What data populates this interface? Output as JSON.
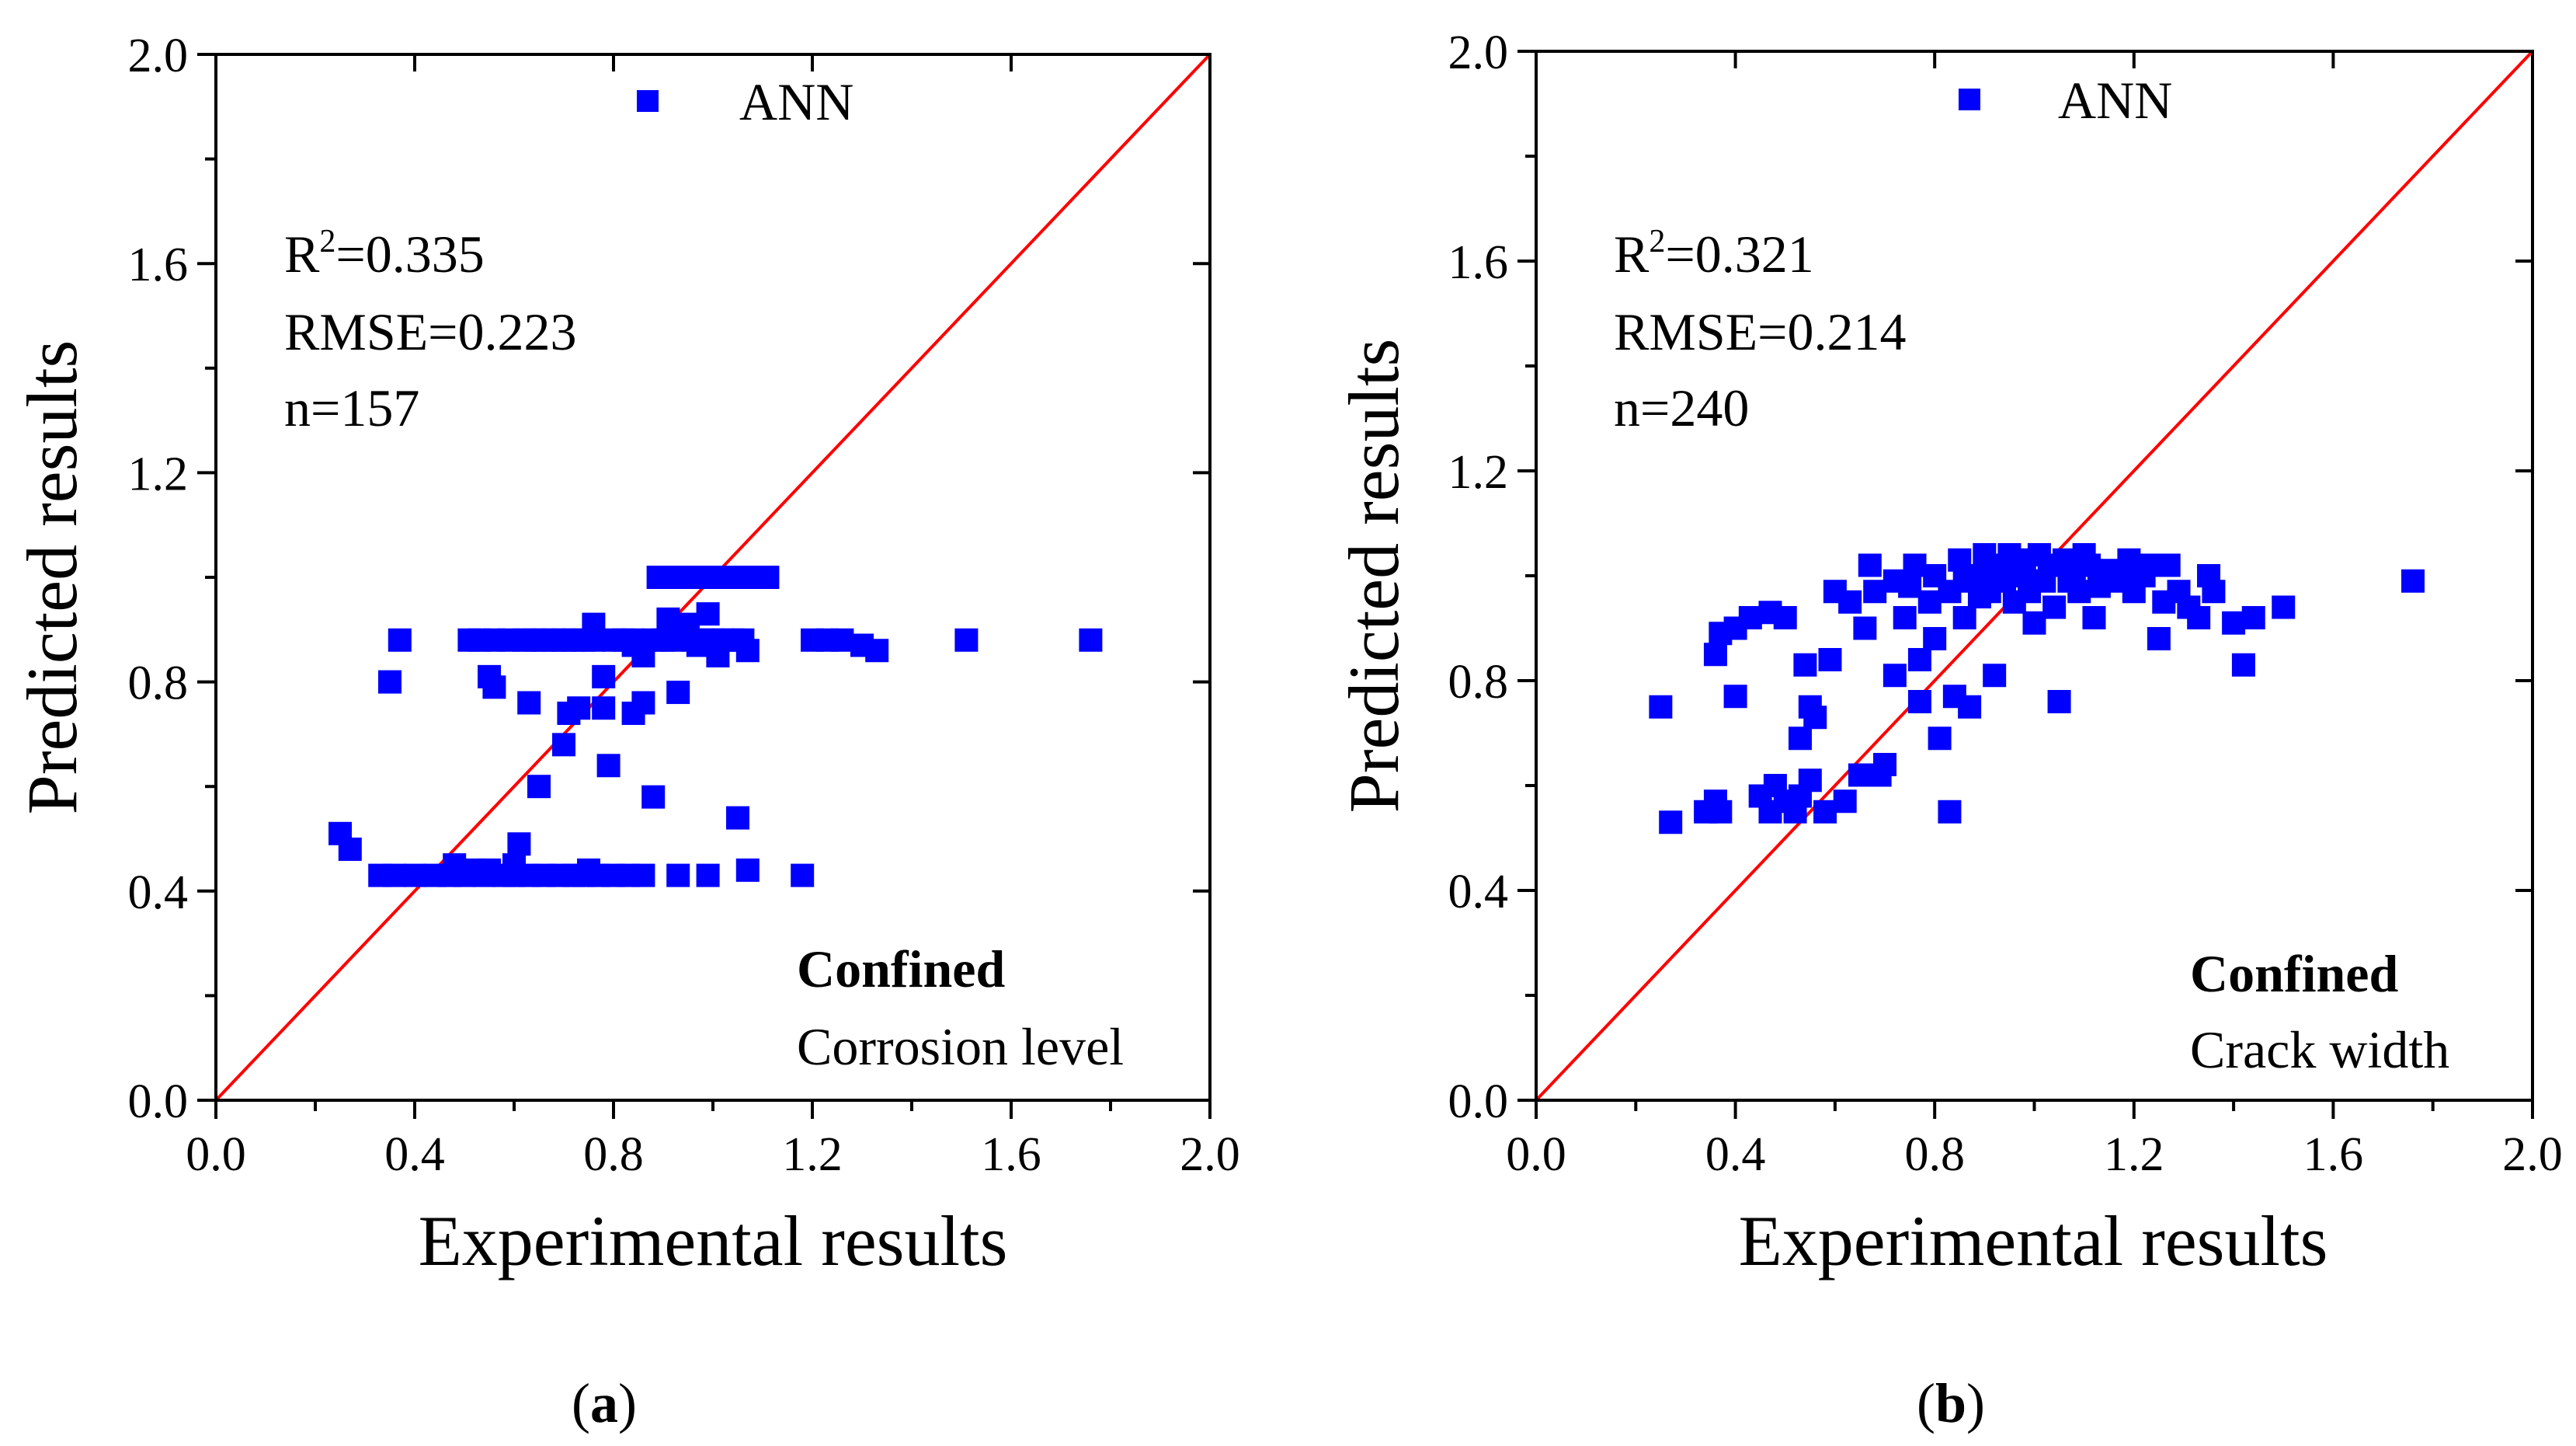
{
  "chart_data": [
    {
      "type": "scatter",
      "panel_label": "a",
      "xlabel": "Experimental results",
      "ylabel": "Predicted results",
      "xlim": [
        0.0,
        2.0
      ],
      "ylim": [
        0.0,
        2.0
      ],
      "xticks": [
        "0.0",
        "0.4",
        "0.8",
        "1.2",
        "1.6",
        "2.0"
      ],
      "yticks": [
        "0.0",
        "0.4",
        "0.8",
        "1.2",
        "1.6",
        "2.0"
      ],
      "legend": "ANN",
      "legend_position": "top-center",
      "reference_line": "y = x",
      "stats": {
        "r2_label": "R",
        "r2_sup": "2",
        "r2_value": "=0.335",
        "rmse": "RMSE=0.223",
        "n": "n=157"
      },
      "annotation_title": "Confined",
      "annotation_subtitle": "Corrosion level",
      "series": [
        {
          "name": "ANN",
          "color": "#0000ff",
          "points": [
            [
              0.25,
              0.51
            ],
            [
              0.27,
              0.48
            ],
            [
              0.33,
              0.43
            ],
            [
              0.36,
              0.43
            ],
            [
              0.4,
              0.43
            ],
            [
              0.44,
              0.43
            ],
            [
              0.47,
              0.43
            ],
            [
              0.5,
              0.43
            ],
            [
              0.54,
              0.43
            ],
            [
              0.58,
              0.43
            ],
            [
              0.6,
              0.43
            ],
            [
              0.63,
              0.43
            ],
            [
              0.66,
              0.43
            ],
            [
              0.69,
              0.43
            ],
            [
              0.72,
              0.43
            ],
            [
              0.74,
              0.43
            ],
            [
              0.77,
              0.43
            ],
            [
              0.8,
              0.43
            ],
            [
              0.83,
              0.43
            ],
            [
              0.86,
              0.43
            ],
            [
              0.93,
              0.43
            ],
            [
              0.99,
              0.43
            ],
            [
              1.07,
              0.44
            ],
            [
              1.18,
              0.43
            ],
            [
              0.6,
              0.45
            ],
            [
              0.61,
              0.49
            ],
            [
              0.55,
              0.44
            ],
            [
              0.48,
              0.45
            ],
            [
              0.52,
              0.44
            ],
            [
              0.75,
              0.44
            ],
            [
              0.35,
              0.8
            ],
            [
              0.37,
              0.88
            ],
            [
              0.51,
              0.88
            ],
            [
              0.55,
              0.81
            ],
            [
              0.56,
              0.79
            ],
            [
              0.59,
              0.88
            ],
            [
              0.63,
              0.76
            ],
            [
              0.65,
              0.6
            ],
            [
              0.7,
              0.68
            ],
            [
              0.71,
              0.74
            ],
            [
              0.73,
              0.75
            ],
            [
              0.76,
              0.91
            ],
            [
              0.78,
              0.81
            ],
            [
              0.78,
              0.75
            ],
            [
              0.79,
              0.64
            ],
            [
              0.84,
              0.74
            ],
            [
              0.86,
              0.76
            ],
            [
              0.86,
              0.85
            ],
            [
              0.88,
              0.58
            ],
            [
              0.93,
              0.78
            ],
            [
              0.94,
              0.89
            ],
            [
              0.99,
              0.93
            ],
            [
              1.01,
              0.85
            ],
            [
              1.05,
              0.54
            ],
            [
              1.06,
              0.88
            ],
            [
              1.07,
              0.86
            ],
            [
              0.53,
              0.88
            ],
            [
              0.56,
              0.88
            ],
            [
              0.62,
              0.88
            ],
            [
              0.64,
              0.88
            ],
            [
              0.66,
              0.88
            ],
            [
              0.68,
              0.88
            ],
            [
              0.7,
              0.88
            ],
            [
              0.72,
              0.88
            ],
            [
              0.74,
              0.88
            ],
            [
              0.76,
              0.88
            ],
            [
              0.8,
              0.88
            ],
            [
              0.82,
              0.88
            ],
            [
              0.84,
              0.88
            ],
            [
              0.88,
              0.88
            ],
            [
              0.9,
              0.88
            ],
            [
              0.92,
              0.88
            ],
            [
              0.96,
              0.88
            ],
            [
              0.98,
              0.88
            ],
            [
              1.0,
              0.88
            ],
            [
              1.02,
              0.88
            ],
            [
              1.04,
              0.88
            ],
            [
              1.2,
              0.88
            ],
            [
              1.23,
              0.88
            ],
            [
              1.26,
              0.88
            ],
            [
              1.3,
              0.87
            ],
            [
              1.33,
              0.86
            ],
            [
              1.51,
              0.88
            ],
            [
              1.76,
              0.88
            ],
            [
              0.84,
              0.87
            ],
            [
              0.91,
              0.92
            ],
            [
              0.95,
              0.91
            ],
            [
              0.97,
              0.87
            ],
            [
              0.89,
              1.0
            ],
            [
              0.91,
              1.0
            ],
            [
              0.93,
              1.0
            ],
            [
              0.95,
              1.0
            ],
            [
              0.97,
              1.0
            ],
            [
              0.99,
              1.0
            ],
            [
              1.01,
              1.0
            ],
            [
              1.03,
              1.0
            ],
            [
              1.05,
              1.0
            ],
            [
              1.07,
              1.0
            ],
            [
              1.09,
              1.0
            ],
            [
              1.11,
              1.0
            ]
          ]
        }
      ]
    },
    {
      "type": "scatter",
      "panel_label": "b",
      "xlabel": "Experimental results",
      "ylabel": "Predicted results",
      "xlim": [
        0.0,
        2.0
      ],
      "ylim": [
        0.0,
        2.0
      ],
      "xticks": [
        "0.0",
        "0.4",
        "0.8",
        "1.2",
        "1.6",
        "2.0"
      ],
      "yticks": [
        "0.0",
        "0.4",
        "0.8",
        "1.2",
        "1.6",
        "2.0"
      ],
      "legend": "ANN",
      "legend_position": "top-center",
      "reference_line": "y = x",
      "stats": {
        "r2_label": "R",
        "r2_sup": "2",
        "r2_value": "=0.321",
        "rmse": "RMSE=0.214",
        "n": "n=240"
      },
      "annotation_title": "Confined",
      "annotation_subtitle": "Crack width",
      "series": [
        {
          "name": "ANN",
          "color": "#0000ff",
          "points": [
            [
              0.25,
              0.75
            ],
            [
              0.27,
              0.53
            ],
            [
              0.34,
              0.55
            ],
            [
              0.36,
              0.57
            ],
            [
              0.37,
              0.55
            ],
            [
              0.36,
              0.85
            ],
            [
              0.37,
              0.89
            ],
            [
              0.4,
              0.9
            ],
            [
              0.43,
              0.92
            ],
            [
              0.47,
              0.93
            ],
            [
              0.5,
              0.92
            ],
            [
              0.4,
              0.77
            ],
            [
              0.45,
              0.58
            ],
            [
              0.47,
              0.55
            ],
            [
              0.48,
              0.6
            ],
            [
              0.5,
              0.57
            ],
            [
              0.52,
              0.55
            ],
            [
              0.53,
              0.58
            ],
            [
              0.55,
              0.61
            ],
            [
              0.55,
              0.75
            ],
            [
              0.56,
              0.73
            ],
            [
              0.53,
              0.69
            ],
            [
              0.54,
              0.83
            ],
            [
              0.58,
              0.55
            ],
            [
              0.59,
              0.84
            ],
            [
              0.6,
              0.97
            ],
            [
              0.62,
              0.57
            ],
            [
              0.65,
              0.62
            ],
            [
              0.66,
              0.9
            ],
            [
              0.67,
              1.02
            ],
            [
              0.69,
              0.62
            ],
            [
              0.7,
              0.64
            ],
            [
              0.72,
              0.81
            ],
            [
              0.74,
              0.92
            ],
            [
              0.75,
              0.98
            ],
            [
              0.76,
              1.02
            ],
            [
              0.77,
              0.84
            ],
            [
              0.77,
              0.76
            ],
            [
              0.79,
              0.95
            ],
            [
              0.8,
              0.88
            ],
            [
              0.8,
              1.0
            ],
            [
              0.81,
              0.69
            ],
            [
              0.83,
              0.97
            ],
            [
              0.83,
              0.55
            ],
            [
              0.84,
              0.77
            ],
            [
              0.85,
              1.03
            ],
            [
              0.86,
              0.92
            ],
            [
              0.87,
              0.75
            ],
            [
              0.88,
              1.0
            ],
            [
              0.89,
              0.96
            ],
            [
              0.9,
              1.04
            ],
            [
              0.91,
              0.97
            ],
            [
              0.92,
              0.81
            ],
            [
              0.93,
              1.02
            ],
            [
              0.94,
              0.99
            ],
            [
              0.95,
              1.04
            ],
            [
              0.96,
              0.95
            ],
            [
              0.97,
              1.01
            ],
            [
              0.98,
              1.03
            ],
            [
              0.99,
              0.97
            ],
            [
              1.0,
              0.91
            ],
            [
              1.01,
              1.04
            ],
            [
              1.02,
              0.99
            ],
            [
              1.03,
              1.02
            ],
            [
              1.04,
              0.94
            ],
            [
              1.05,
              0.76
            ],
            [
              1.06,
              1.03
            ],
            [
              1.08,
              1.0
            ],
            [
              1.09,
              0.97
            ],
            [
              1.1,
              1.04
            ],
            [
              1.12,
              0.92
            ],
            [
              1.13,
              0.98
            ],
            [
              1.15,
              1.01
            ],
            [
              1.17,
              0.99
            ],
            [
              1.19,
              1.03
            ],
            [
              1.2,
              0.97
            ],
            [
              1.22,
              1.0
            ],
            [
              1.23,
              1.02
            ],
            [
              1.25,
              0.88
            ],
            [
              1.26,
              0.95
            ],
            [
              1.27,
              1.02
            ],
            [
              1.29,
              0.97
            ],
            [
              1.31,
              0.94
            ],
            [
              1.33,
              0.92
            ],
            [
              1.35,
              1.0
            ],
            [
              1.36,
              0.97
            ],
            [
              1.4,
              0.91
            ],
            [
              1.42,
              0.83
            ],
            [
              1.44,
              0.92
            ],
            [
              1.5,
              0.94
            ],
            [
              1.76,
              0.99
            ],
            [
              0.63,
              0.95
            ],
            [
              0.68,
              0.97
            ],
            [
              0.72,
              0.99
            ],
            [
              0.86,
              0.99
            ],
            [
              0.92,
              1.01
            ],
            [
              0.98,
              1.0
            ],
            [
              1.07,
              0.99
            ],
            [
              1.11,
              1.02
            ],
            [
              1.21,
              1.01
            ]
          ]
        }
      ]
    }
  ]
}
